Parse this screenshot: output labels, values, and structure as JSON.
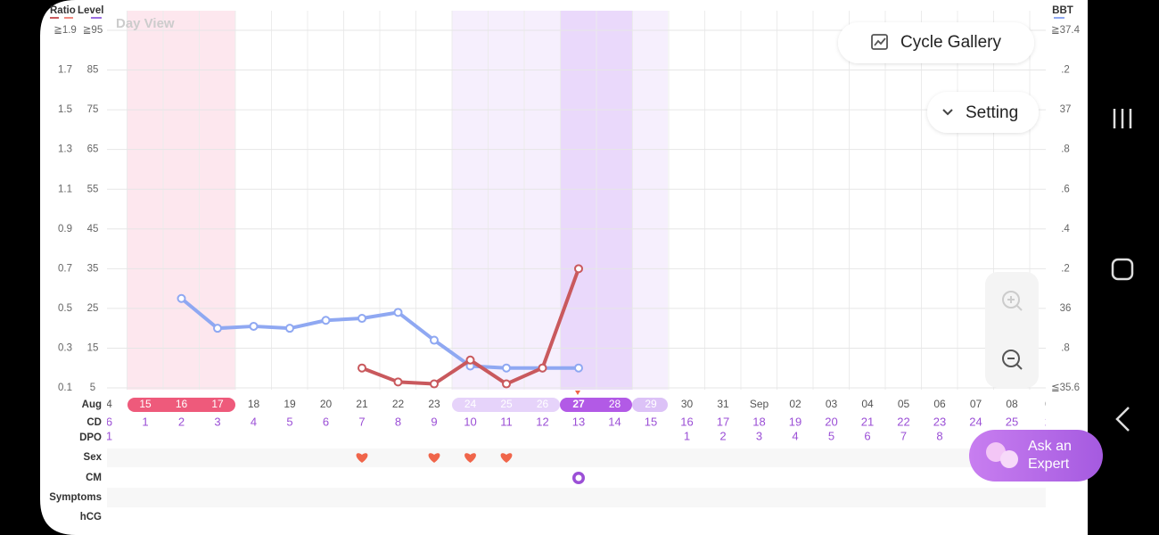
{
  "header": {
    "ratio_label": "Ratio",
    "level_label": "Level",
    "bbt_label": "BBT",
    "view": "Day View"
  },
  "buttons": {
    "cycle_gallery": "Cycle Gallery",
    "setting": "Setting",
    "ask_expert": [
      "Ask an",
      "Expert"
    ]
  },
  "row_labels": [
    "Aug",
    "CD",
    "DPO",
    "Sex",
    "CM",
    "Symptoms",
    "hCG"
  ],
  "chart_data": {
    "type": "line",
    "categories": [
      "4",
      "15",
      "16",
      "17",
      "18",
      "19",
      "20",
      "21",
      "22",
      "23",
      "24",
      "25",
      "26",
      "27",
      "28",
      "29",
      "30",
      "31",
      "Sep",
      "02",
      "03",
      "04",
      "05",
      "06",
      "07",
      "08",
      "0"
    ],
    "cd": [
      "6",
      "1",
      "2",
      "3",
      "4",
      "5",
      "6",
      "7",
      "8",
      "9",
      "10",
      "11",
      "12",
      "13",
      "14",
      "15",
      "16",
      "17",
      "18",
      "19",
      "20",
      "21",
      "22",
      "23",
      "24",
      "25",
      "2"
    ],
    "dpo": [
      "1",
      null,
      null,
      null,
      null,
      null,
      null,
      null,
      null,
      null,
      null,
      null,
      null,
      null,
      null,
      null,
      "1",
      "2",
      "3",
      "4",
      "5",
      "6",
      "7",
      "8",
      null,
      null,
      null
    ],
    "series": [
      {
        "color": "#8fa8f2",
        "axis": "y2",
        "values": [
          null,
          null,
          36.05,
          35.9,
          35.91,
          35.9,
          35.94,
          35.95,
          35.98,
          35.84,
          35.71,
          35.7,
          35.7,
          35.7,
          null,
          null,
          null,
          null,
          null,
          null,
          null,
          null,
          null,
          null,
          null,
          null,
          null
        ]
      },
      {
        "color": "#c9595d",
        "values": [
          null,
          null,
          null,
          null,
          null,
          null,
          null,
          0.2,
          0.13,
          0.12,
          0.24,
          0.12,
          0.2,
          0.7,
          null,
          null,
          null,
          null,
          null,
          null,
          null,
          null,
          null,
          null,
          null,
          null,
          null
        ]
      }
    ],
    "ylim": [
      0.1,
      1.9
    ],
    "yticks": [
      {
        "value": 1.9,
        "label": "≧1.9"
      },
      1.7,
      1.5,
      1.3,
      1.1,
      0.9,
      0.7,
      0.5,
      0.3,
      0.1
    ],
    "level_lim": [
      5,
      95
    ],
    "level_ticks": [
      {
        "value": 95,
        "label": "≧95"
      },
      85,
      75,
      65,
      55,
      45,
      35,
      25,
      15,
      5
    ],
    "y2lim": [
      35.6,
      37.4
    ],
    "y2ticks": [
      {
        "value": 37.4,
        "label": "≧37.4"
      },
      {
        "value": 37.2,
        "label": ".2"
      },
      37,
      {
        "value": 36.8,
        "label": ".8"
      },
      {
        "value": 36.6,
        "label": ".6"
      },
      {
        "value": 36.4,
        "label": ".4"
      },
      {
        "value": 36.2,
        "label": ".2"
      },
      36,
      {
        "value": 35.8,
        "label": ".8"
      },
      {
        "value": 35.6,
        "label": "≦35.6"
      }
    ],
    "grid": true
  }
}
